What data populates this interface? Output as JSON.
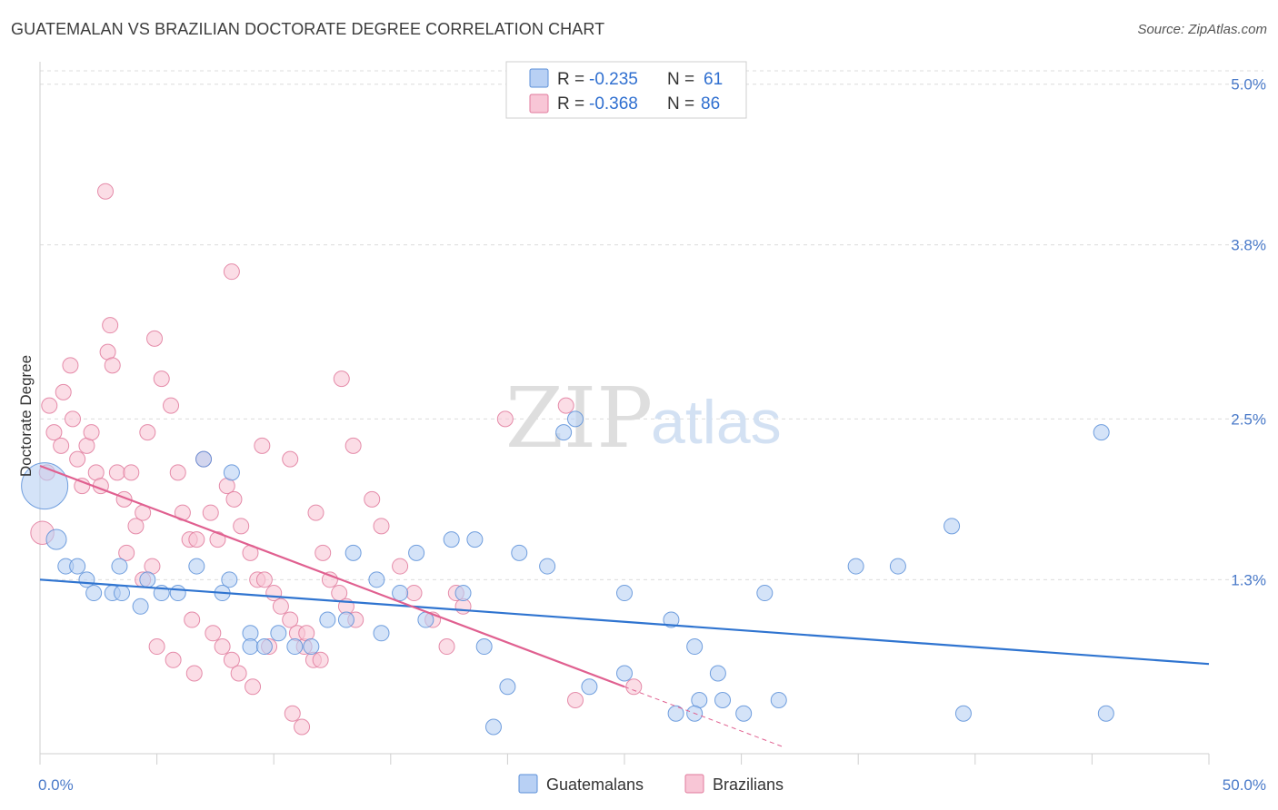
{
  "title": "GUATEMALAN VS BRAZILIAN DOCTORATE DEGREE CORRELATION CHART",
  "source": "Source: ZipAtlas.com",
  "watermark": {
    "zip": "ZIP",
    "atlas": "atlas"
  },
  "colors": {
    "guatemalans_fill": "#b8d0f4",
    "guatemalans_stroke": "#5b8fd8",
    "guatemalans_line": "#2f74d0",
    "brazilians_fill": "#f8c6d6",
    "brazilians_stroke": "#e07a9c",
    "brazilians_line": "#e06090",
    "tick_text": "#4a7ac9",
    "grid": "#dcdcdc"
  },
  "legend": {
    "rows": [
      {
        "r_label": "R = ",
        "r_value": "-0.235",
        "n_label": "N = ",
        "n_value": "61"
      },
      {
        "r_label": "R = ",
        "r_value": "-0.368",
        "n_label": "N = ",
        "n_value": "86"
      }
    ]
  },
  "chart_data": {
    "type": "scatter",
    "title": "GUATEMALAN VS BRAZILIAN DOCTORATE DEGREE CORRELATION CHART",
    "xlabel": "",
    "ylabel": "Doctorate Degree",
    "xlim": [
      0,
      50
    ],
    "ylim": [
      0,
      5.1
    ],
    "x_tick_labels": [
      "0.0%",
      "50.0%"
    ],
    "y_ticks": [
      1.3,
      2.5,
      3.8,
      5.0
    ],
    "y_tick_labels": [
      "1.3%",
      "2.5%",
      "3.8%",
      "5.0%"
    ],
    "grid": true,
    "legend_position": "bottom",
    "series": [
      {
        "name": "Guatemalans",
        "trend": {
          "x0": 0,
          "y0": 1.3,
          "x1": 50,
          "y1": 0.67
        },
        "points": [
          [
            0.2,
            2.0,
            3.0
          ],
          [
            0.7,
            1.6,
            1.3
          ],
          [
            1.1,
            1.4,
            1.0
          ],
          [
            1.6,
            1.4,
            1.0
          ],
          [
            2.0,
            1.3,
            1.0
          ],
          [
            2.3,
            1.2,
            1.0
          ],
          [
            3.4,
            1.4,
            1.0
          ],
          [
            4.3,
            1.1,
            1.0
          ],
          [
            4.6,
            1.3,
            1.0
          ],
          [
            3.1,
            1.2,
            1.0
          ],
          [
            3.5,
            1.2,
            1.0
          ],
          [
            5.2,
            1.2,
            1.0
          ],
          [
            5.9,
            1.2,
            1.0
          ],
          [
            6.7,
            1.4,
            1.0
          ],
          [
            7.0,
            2.2,
            1.0
          ],
          [
            8.2,
            2.1,
            1.0
          ],
          [
            8.1,
            1.3,
            1.0
          ],
          [
            7.8,
            1.2,
            1.0
          ],
          [
            9.0,
            0.9,
            1.0
          ],
          [
            9.0,
            0.8,
            1.0
          ],
          [
            9.6,
            0.8,
            1.0
          ],
          [
            10.2,
            0.9,
            1.0
          ],
          [
            10.9,
            0.8,
            1.0
          ],
          [
            11.6,
            0.8,
            1.0
          ],
          [
            12.3,
            1.0,
            1.0
          ],
          [
            13.1,
            1.0,
            1.0
          ],
          [
            13.4,
            1.5,
            1.0
          ],
          [
            14.4,
            1.3,
            1.0
          ],
          [
            14.6,
            0.9,
            1.0
          ],
          [
            15.4,
            1.2,
            1.0
          ],
          [
            16.1,
            1.5,
            1.0
          ],
          [
            17.6,
            1.6,
            1.0
          ],
          [
            18.6,
            1.6,
            1.0
          ],
          [
            18.1,
            1.2,
            1.0
          ],
          [
            16.5,
            1.0,
            1.0
          ],
          [
            19.0,
            0.8,
            1.0
          ],
          [
            20.5,
            1.5,
            1.0
          ],
          [
            21.7,
            1.4,
            1.0
          ],
          [
            22.4,
            2.4,
            1.0
          ],
          [
            22.9,
            2.5,
            1.0
          ],
          [
            20.0,
            0.5,
            1.0
          ],
          [
            19.4,
            0.2,
            1.0
          ],
          [
            23.5,
            0.5,
            1.0
          ],
          [
            25.0,
            1.2,
            1.0
          ],
          [
            25.0,
            0.6,
            1.0
          ],
          [
            27.0,
            1.0,
            1.0
          ],
          [
            28.0,
            0.8,
            1.0
          ],
          [
            29.0,
            0.6,
            1.0
          ],
          [
            28.2,
            0.4,
            1.0
          ],
          [
            28.0,
            0.3,
            1.0
          ],
          [
            27.2,
            0.3,
            1.0
          ],
          [
            29.2,
            0.4,
            1.0
          ],
          [
            31.6,
            0.4,
            1.0
          ],
          [
            30.1,
            0.3,
            1.0
          ],
          [
            34.9,
            1.4,
            1.0
          ],
          [
            31.0,
            1.2,
            1.0
          ],
          [
            36.7,
            1.4,
            1.0
          ],
          [
            39.0,
            1.7,
            1.0
          ],
          [
            39.5,
            0.3,
            1.0
          ],
          [
            45.6,
            0.3,
            1.0
          ],
          [
            45.4,
            2.4,
            1.0
          ]
        ]
      },
      {
        "name": "Brazilians",
        "trend": {
          "x0": 0,
          "y0": 2.15,
          "x1": 25.0,
          "y1": 0.5,
          "dash_x1": 31.8,
          "dash_y1": 0.05
        },
        "points": [
          [
            0.1,
            1.65,
            1.5
          ],
          [
            0.3,
            2.1,
            1.0
          ],
          [
            0.4,
            2.6,
            1.0
          ],
          [
            0.6,
            2.4,
            1.0
          ],
          [
            0.9,
            2.3,
            1.0
          ],
          [
            1.0,
            2.7,
            1.0
          ],
          [
            1.3,
            2.9,
            1.0
          ],
          [
            1.4,
            2.5,
            1.0
          ],
          [
            1.6,
            2.2,
            1.0
          ],
          [
            1.8,
            2.0,
            1.0
          ],
          [
            2.0,
            2.3,
            1.0
          ],
          [
            2.2,
            2.4,
            1.0
          ],
          [
            2.4,
            2.1,
            1.0
          ],
          [
            2.6,
            2.0,
            1.0
          ],
          [
            2.9,
            3.0,
            1.0
          ],
          [
            3.1,
            2.9,
            1.0
          ],
          [
            3.3,
            2.1,
            1.0
          ],
          [
            3.6,
            1.9,
            1.0
          ],
          [
            3.9,
            2.1,
            1.0
          ],
          [
            4.1,
            1.7,
            1.0
          ],
          [
            4.4,
            1.8,
            1.0
          ],
          [
            4.6,
            2.4,
            1.0
          ],
          [
            2.8,
            4.2,
            1.0
          ],
          [
            3.0,
            3.2,
            1.0
          ],
          [
            4.9,
            3.1,
            1.0
          ],
          [
            5.2,
            2.8,
            1.0
          ],
          [
            5.6,
            2.6,
            1.0
          ],
          [
            5.9,
            2.1,
            1.0
          ],
          [
            6.1,
            1.8,
            1.0
          ],
          [
            6.4,
            1.6,
            1.0
          ],
          [
            6.7,
            1.6,
            1.0
          ],
          [
            7.0,
            2.2,
            1.0
          ],
          [
            7.3,
            1.8,
            1.0
          ],
          [
            7.6,
            1.6,
            1.0
          ],
          [
            8.0,
            2.0,
            1.0
          ],
          [
            8.3,
            1.9,
            1.0
          ],
          [
            8.6,
            1.7,
            1.0
          ],
          [
            9.0,
            1.5,
            1.0
          ],
          [
            9.3,
            1.3,
            1.0
          ],
          [
            9.6,
            1.3,
            1.0
          ],
          [
            10.0,
            1.2,
            1.0
          ],
          [
            10.3,
            1.1,
            1.0
          ],
          [
            10.7,
            1.0,
            1.0
          ],
          [
            11.0,
            0.9,
            1.0
          ],
          [
            11.3,
            0.8,
            1.0
          ],
          [
            11.7,
            0.7,
            1.0
          ],
          [
            12.1,
            1.5,
            1.0
          ],
          [
            12.4,
            1.3,
            1.0
          ],
          [
            12.8,
            1.2,
            1.0
          ],
          [
            13.1,
            1.1,
            1.0
          ],
          [
            13.5,
            1.0,
            1.0
          ],
          [
            8.2,
            3.6,
            1.0
          ],
          [
            9.5,
            2.3,
            1.0
          ],
          [
            10.7,
            2.2,
            1.0
          ],
          [
            11.8,
            1.8,
            1.0
          ],
          [
            12.9,
            2.8,
            1.0
          ],
          [
            13.4,
            2.3,
            1.0
          ],
          [
            14.2,
            1.9,
            1.0
          ],
          [
            14.6,
            1.7,
            1.0
          ],
          [
            15.4,
            1.4,
            1.0
          ],
          [
            16.0,
            1.2,
            1.0
          ],
          [
            16.8,
            1.0,
            1.0
          ],
          [
            17.4,
            0.8,
            1.0
          ],
          [
            18.1,
            1.1,
            1.0
          ],
          [
            17.8,
            1.2,
            1.0
          ],
          [
            19.9,
            2.5,
            1.0
          ],
          [
            22.5,
            2.6,
            1.0
          ],
          [
            22.9,
            0.4,
            1.0
          ],
          [
            25.4,
            0.5,
            1.0
          ],
          [
            6.6,
            0.6,
            1.0
          ],
          [
            5.0,
            0.8,
            1.0
          ],
          [
            5.7,
            0.7,
            1.0
          ],
          [
            6.5,
            1.0,
            1.0
          ],
          [
            7.4,
            0.9,
            1.0
          ],
          [
            7.8,
            0.8,
            1.0
          ],
          [
            8.2,
            0.7,
            1.0
          ],
          [
            8.5,
            0.6,
            1.0
          ],
          [
            9.1,
            0.5,
            1.0
          ],
          [
            10.8,
            0.3,
            1.0
          ],
          [
            11.2,
            0.2,
            1.0
          ],
          [
            11.4,
            0.9,
            1.0
          ],
          [
            12.0,
            0.7,
            1.0
          ],
          [
            9.8,
            0.8,
            1.0
          ],
          [
            4.8,
            1.4,
            1.0
          ],
          [
            4.4,
            1.3,
            1.0
          ],
          [
            3.7,
            1.5,
            1.0
          ]
        ]
      }
    ]
  },
  "bottom_legend": {
    "items": [
      {
        "label": "Guatemalans"
      },
      {
        "label": "Brazilians"
      }
    ]
  }
}
